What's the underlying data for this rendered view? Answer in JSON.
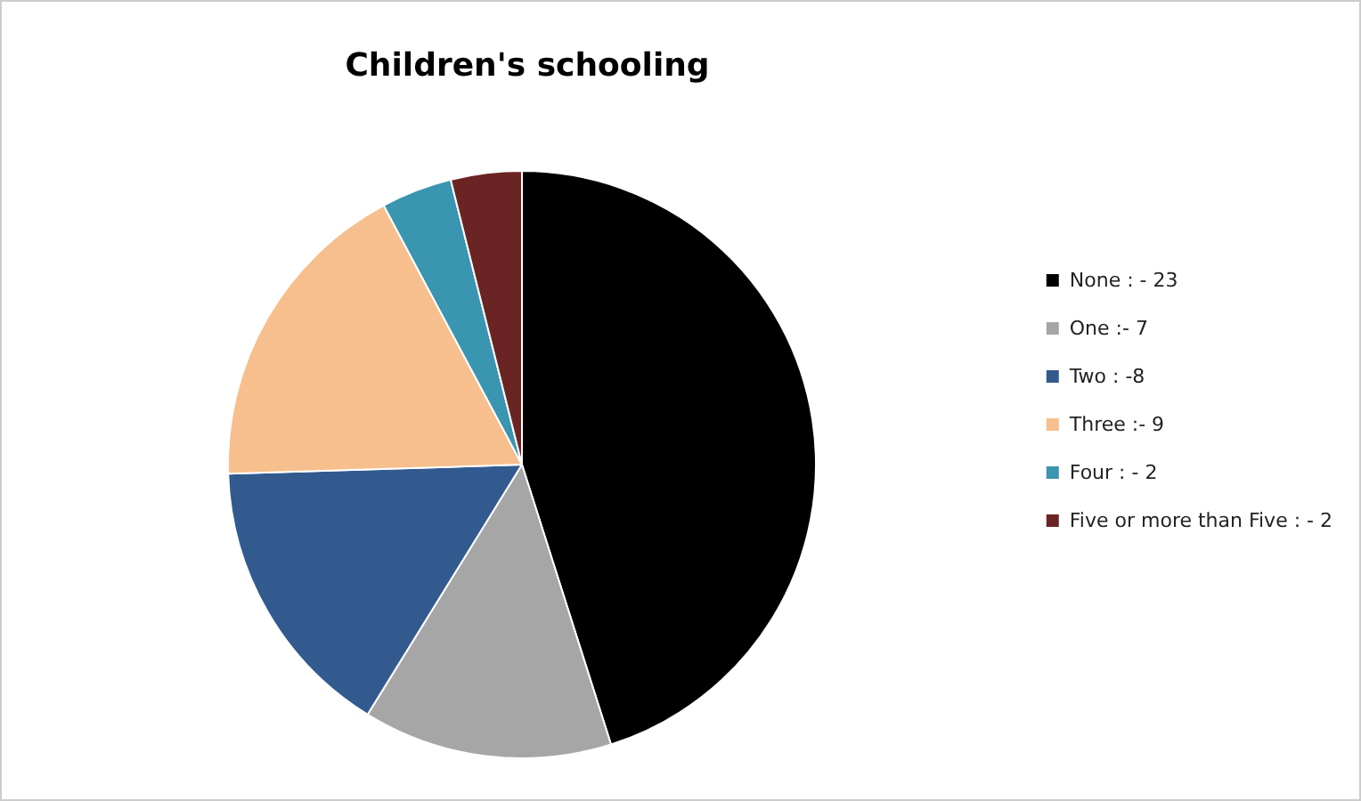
{
  "chart_data": {
    "type": "pie",
    "title": "Children's schooling",
    "categories": [
      "None : - 23",
      "One :- 7",
      "Two : -8",
      "Three :- 9",
      "Four : - 2",
      "Five or more than Five : - 2"
    ],
    "values": [
      45.1,
      13.7,
      15.7,
      17.7,
      3.9,
      3.9
    ],
    "colors": [
      "#000000",
      "#a6a6a6",
      "#335a8f",
      "#f6bf8d",
      "#3a95b0",
      "#6b2424"
    ],
    "legend": "right"
  }
}
